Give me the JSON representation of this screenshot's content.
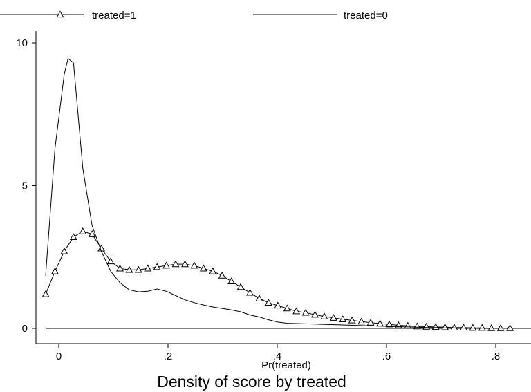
{
  "chart_data": {
    "type": "line",
    "title": "Density of score by treated",
    "xlabel": "Pr(treated)",
    "ylabel": "",
    "xlim": [
      -0.05,
      0.84
    ],
    "ylim": [
      0,
      10.3
    ],
    "x_ticks": [
      0,
      0.2,
      0.4,
      0.6,
      0.8
    ],
    "x_tick_labels": [
      "0",
      ".2",
      ".4",
      ".6",
      ".8"
    ],
    "y_ticks": [
      0,
      5,
      10
    ],
    "y_tick_labels": [
      "0",
      "5",
      "10"
    ],
    "reference_line_y": 0,
    "legend_position": "top",
    "series": [
      {
        "name": "treated=1",
        "marker": "triangle",
        "color": "#000000",
        "x": [
          -0.024,
          -0.007,
          0.01,
          0.027,
          0.044,
          0.061,
          0.078,
          0.095,
          0.112,
          0.129,
          0.146,
          0.163,
          0.18,
          0.197,
          0.214,
          0.231,
          0.248,
          0.265,
          0.282,
          0.299,
          0.316,
          0.333,
          0.35,
          0.367,
          0.384,
          0.401,
          0.418,
          0.435,
          0.452,
          0.469,
          0.486,
          0.503,
          0.52,
          0.537,
          0.554,
          0.571,
          0.588,
          0.605,
          0.622,
          0.639,
          0.656,
          0.673,
          0.69,
          0.707,
          0.724,
          0.741,
          0.758,
          0.775,
          0.792,
          0.809,
          0.826
        ],
        "y": [
          1.2,
          2.0,
          2.7,
          3.2,
          3.4,
          3.3,
          2.8,
          2.35,
          2.1,
          2.05,
          2.05,
          2.1,
          2.15,
          2.2,
          2.25,
          2.25,
          2.2,
          2.1,
          2.0,
          1.85,
          1.65,
          1.45,
          1.25,
          1.05,
          0.9,
          0.8,
          0.7,
          0.6,
          0.55,
          0.48,
          0.42,
          0.37,
          0.32,
          0.28,
          0.24,
          0.2,
          0.17,
          0.14,
          0.11,
          0.09,
          0.07,
          0.06,
          0.05,
          0.04,
          0.03,
          0.03,
          0.02,
          0.02,
          0.01,
          0.01,
          0.01
        ]
      },
      {
        "name": "treated=0",
        "marker": "none",
        "color": "#000000",
        "x": [
          -0.024,
          -0.007,
          0.01,
          0.017,
          0.027,
          0.044,
          0.061,
          0.078,
          0.095,
          0.112,
          0.129,
          0.146,
          0.163,
          0.18,
          0.197,
          0.214,
          0.231,
          0.248,
          0.265,
          0.282,
          0.299,
          0.316,
          0.333,
          0.35,
          0.367,
          0.384,
          0.401,
          0.418,
          0.435,
          0.452,
          0.469,
          0.486,
          0.503,
          0.52,
          0.537,
          0.554,
          0.571,
          0.588,
          0.605,
          0.622,
          0.639,
          0.656,
          0.673,
          0.69,
          0.707,
          0.724,
          0.741,
          0.758,
          0.775,
          0.792,
          0.809,
          0.826
        ],
        "y": [
          1.85,
          6.3,
          8.9,
          9.45,
          9.3,
          5.6,
          3.6,
          2.7,
          2.0,
          1.6,
          1.35,
          1.28,
          1.3,
          1.38,
          1.3,
          1.15,
          1.0,
          0.9,
          0.82,
          0.75,
          0.7,
          0.65,
          0.58,
          0.47,
          0.4,
          0.3,
          0.22,
          0.18,
          0.17,
          0.16,
          0.15,
          0.14,
          0.13,
          0.12,
          0.11,
          0.1,
          0.09,
          0.08,
          0.07,
          0.06,
          0.05,
          0.04,
          0.03,
          0.03,
          0.02,
          0.02,
          0.01,
          0.01,
          0.01,
          0.01,
          0.01,
          0.01
        ]
      }
    ]
  }
}
